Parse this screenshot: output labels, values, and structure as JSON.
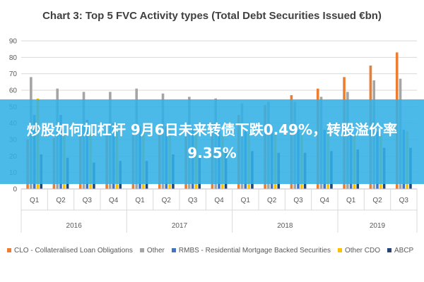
{
  "chart_data": {
    "type": "bar",
    "title": "Chart 3: Top 5 FVC Activity types (Total Debt Securities Issued €bn)",
    "xlabel": "",
    "ylabel": "",
    "ylim": [
      0,
      90
    ],
    "yticks": [
      0,
      10,
      20,
      30,
      40,
      50,
      60,
      70,
      80,
      90
    ],
    "grid": true,
    "legend_position": "bottom",
    "categories": [
      "Q1",
      "Q2",
      "Q3",
      "Q4",
      "Q1",
      "Q2",
      "Q3",
      "Q4",
      "Q1",
      "Q2",
      "Q3",
      "Q4",
      "Q1",
      "Q2",
      "Q3"
    ],
    "year_groups": [
      {
        "label": "2016",
        "count": 4
      },
      {
        "label": "2017",
        "count": 4
      },
      {
        "label": "2018",
        "count": 4
      },
      {
        "label": "2019",
        "count": 3
      }
    ],
    "series": [
      {
        "name": "CLO - Collateralised Loan Obligations",
        "color": "#ED7D31",
        "values": [
          30,
          31,
          33,
          35,
          34,
          35,
          36,
          40,
          45,
          51,
          57,
          61,
          68,
          75,
          83
        ]
      },
      {
        "name": "Other",
        "color": "#A5A5A5",
        "values": [
          68,
          61,
          59,
          59,
          61,
          58,
          56,
          55,
          52,
          53,
          53,
          56,
          59,
          66,
          67
        ]
      },
      {
        "name": "RMBS - Residential Mortgage Backed Securities",
        "color": "#4472C4",
        "values": [
          45,
          45,
          42,
          40,
          38,
          38,
          37,
          36,
          35,
          37,
          36,
          36,
          35,
          35,
          36
        ]
      },
      {
        "name": "Other CDO",
        "color": "#FFC000",
        "values": [
          55,
          34,
          35,
          36,
          37,
          37,
          36,
          33,
          34,
          35,
          34,
          38,
          33,
          33,
          35
        ]
      },
      {
        "name": "ABCP",
        "color": "#264478",
        "values": [
          21,
          19,
          16,
          17,
          17,
          21,
          19,
          23,
          23,
          22,
          22,
          23,
          24,
          25,
          25
        ]
      }
    ]
  },
  "overlay": {
    "text": "炒股如何加杠杆 9月6日未来转债下跌0.49%，转股溢价率9.35%"
  }
}
